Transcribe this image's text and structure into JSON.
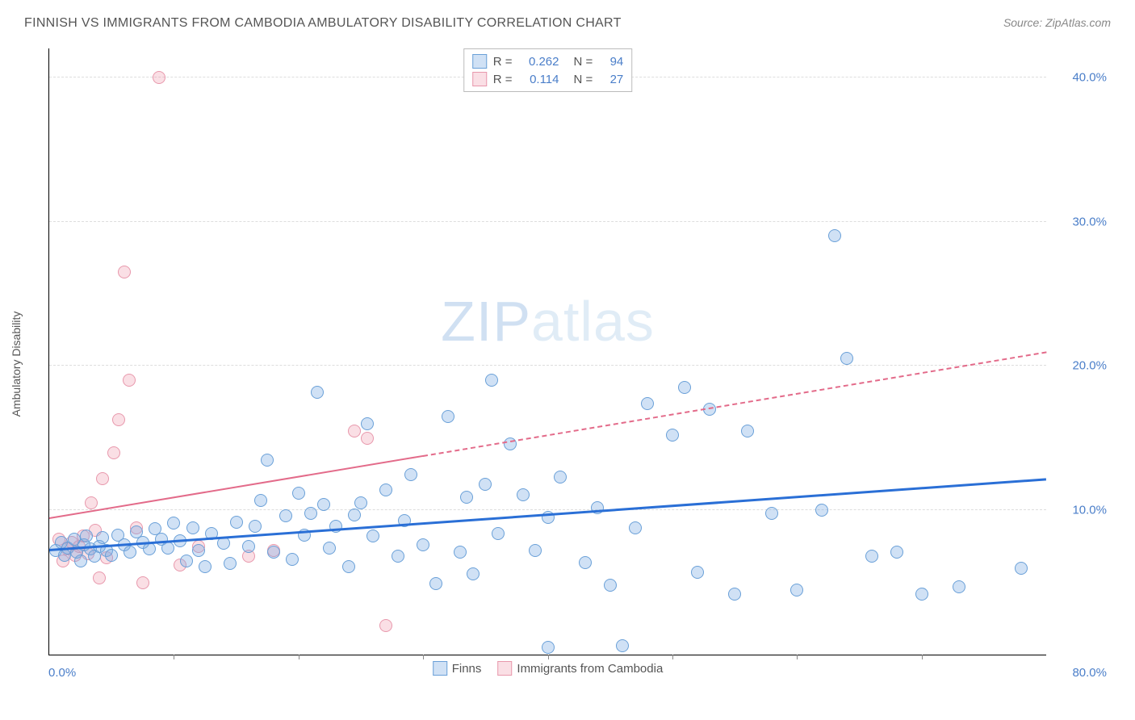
{
  "header": {
    "title": "FINNISH VS IMMIGRANTS FROM CAMBODIA AMBULATORY DISABILITY CORRELATION CHART",
    "source": "Source: ZipAtlas.com"
  },
  "chart": {
    "type": "scatter",
    "y_axis_label": "Ambulatory Disability",
    "xlim": [
      0,
      80
    ],
    "ylim": [
      0,
      42
    ],
    "y_ticks": [
      10,
      20,
      30,
      40
    ],
    "y_tick_labels": [
      "10.0%",
      "20.0%",
      "30.0%",
      "40.0%"
    ],
    "x_ticks": [
      10,
      20,
      30,
      40,
      50,
      60,
      70
    ],
    "x_origin_label": "0.0%",
    "x_max_label": "80.0%",
    "background_color": "#ffffff",
    "grid_color": "#dddddd",
    "marker_radius": 8,
    "marker_border_width": 1.5,
    "watermark_text_bold": "ZIP",
    "watermark_text_light": "atlas",
    "series": {
      "finns": {
        "label": "Finns",
        "color_fill": "rgba(120,170,225,0.35)",
        "color_stroke": "#6aa0d8",
        "r_value": "0.262",
        "n_value": "94",
        "trend": {
          "x1": 0,
          "y1": 7.3,
          "x2": 80,
          "y2": 12.2,
          "solid_until_x": 80,
          "color": "#2a6fd6",
          "width": 3
        },
        "points": [
          [
            0.5,
            7.2
          ],
          [
            1,
            7.8
          ],
          [
            1.2,
            6.9
          ],
          [
            1.5,
            7.4
          ],
          [
            2,
            8
          ],
          [
            2.2,
            7.1
          ],
          [
            2.5,
            6.5
          ],
          [
            2.8,
            7.6
          ],
          [
            3,
            8.2
          ],
          [
            3.3,
            7.3
          ],
          [
            3.6,
            6.8
          ],
          [
            4,
            7.5
          ],
          [
            4.3,
            8.1
          ],
          [
            4.6,
            7.2
          ],
          [
            5,
            6.9
          ],
          [
            5.5,
            8.3
          ],
          [
            6,
            7.6
          ],
          [
            6.5,
            7.1
          ],
          [
            7,
            8.5
          ],
          [
            7.5,
            7.8
          ],
          [
            8,
            7.3
          ],
          [
            8.5,
            8.7
          ],
          [
            9,
            8.0
          ],
          [
            9.5,
            7.4
          ],
          [
            10,
            9.1
          ],
          [
            10.5,
            7.9
          ],
          [
            11,
            6.5
          ],
          [
            11.5,
            8.8
          ],
          [
            12,
            7.2
          ],
          [
            12.5,
            6.1
          ],
          [
            13,
            8.4
          ],
          [
            14,
            7.7
          ],
          [
            14.5,
            6.3
          ],
          [
            15,
            9.2
          ],
          [
            16,
            7.5
          ],
          [
            16.5,
            8.9
          ],
          [
            17,
            10.7
          ],
          [
            17.5,
            13.5
          ],
          [
            18,
            7.1
          ],
          [
            19,
            9.6
          ],
          [
            19.5,
            6.6
          ],
          [
            20,
            11.2
          ],
          [
            20.5,
            8.3
          ],
          [
            21,
            9.8
          ],
          [
            21.5,
            18.2
          ],
          [
            22,
            10.4
          ],
          [
            22.5,
            7.4
          ],
          [
            23,
            8.9
          ],
          [
            24,
            6.1
          ],
          [
            24.5,
            9.7
          ],
          [
            25,
            10.5
          ],
          [
            25.5,
            16.0
          ],
          [
            26,
            8.2
          ],
          [
            27,
            11.4
          ],
          [
            28,
            6.8
          ],
          [
            28.5,
            9.3
          ],
          [
            29,
            12.5
          ],
          [
            30,
            7.6
          ],
          [
            31,
            4.9
          ],
          [
            32,
            16.5
          ],
          [
            33,
            7.1
          ],
          [
            33.5,
            10.9
          ],
          [
            34,
            5.6
          ],
          [
            35,
            11.8
          ],
          [
            35.5,
            19.0
          ],
          [
            36,
            8.4
          ],
          [
            37,
            14.6
          ],
          [
            38,
            11.1
          ],
          [
            39,
            7.2
          ],
          [
            40,
            9.5
          ],
          [
            40,
            0.5
          ],
          [
            41,
            12.3
          ],
          [
            43,
            6.4
          ],
          [
            44,
            10.2
          ],
          [
            45,
            4.8
          ],
          [
            46,
            0.6
          ],
          [
            47,
            8.8
          ],
          [
            48,
            17.4
          ],
          [
            50,
            15.2
          ],
          [
            51,
            18.5
          ],
          [
            52,
            5.7
          ],
          [
            53,
            17.0
          ],
          [
            55,
            4.2
          ],
          [
            56,
            15.5
          ],
          [
            58,
            9.8
          ],
          [
            60,
            4.5
          ],
          [
            62,
            10.0
          ],
          [
            63,
            29.0
          ],
          [
            64,
            20.5
          ],
          [
            66,
            6.8
          ],
          [
            68,
            7.1
          ],
          [
            70,
            4.2
          ],
          [
            73,
            4.7
          ],
          [
            78,
            6.0
          ]
        ]
      },
      "cambodia": {
        "label": "Immigrants from Cambodia",
        "color_fill": "rgba(240,150,170,0.30)",
        "color_stroke": "#e898ac",
        "r_value": "0.114",
        "n_value": "27",
        "trend": {
          "x1": 0,
          "y1": 9.5,
          "x2": 80,
          "y2": 21.0,
          "solid_until_x": 30,
          "color": "#e36b8a",
          "width": 2
        },
        "points": [
          [
            0.8,
            8.0
          ],
          [
            1.1,
            6.5
          ],
          [
            1.4,
            7.3
          ],
          [
            1.8,
            7.8
          ],
          [
            2.1,
            6.9
          ],
          [
            2.4,
            7.5
          ],
          [
            2.7,
            8.2
          ],
          [
            3.1,
            7.0
          ],
          [
            3.4,
            10.5
          ],
          [
            3.7,
            8.6
          ],
          [
            4.0,
            5.3
          ],
          [
            4.3,
            12.2
          ],
          [
            4.6,
            6.7
          ],
          [
            5.2,
            14.0
          ],
          [
            5.6,
            16.3
          ],
          [
            6.0,
            26.5
          ],
          [
            6.4,
            19.0
          ],
          [
            7.0,
            8.8
          ],
          [
            7.5,
            5.0
          ],
          [
            8.8,
            40.0
          ],
          [
            10.5,
            6.2
          ],
          [
            12.0,
            7.5
          ],
          [
            16.0,
            6.8
          ],
          [
            18.0,
            7.2
          ],
          [
            24.5,
            15.5
          ],
          [
            25.5,
            15.0
          ],
          [
            27.0,
            2.0
          ]
        ]
      }
    }
  },
  "legend": {
    "r_label": "R =",
    "n_label": "N ="
  }
}
